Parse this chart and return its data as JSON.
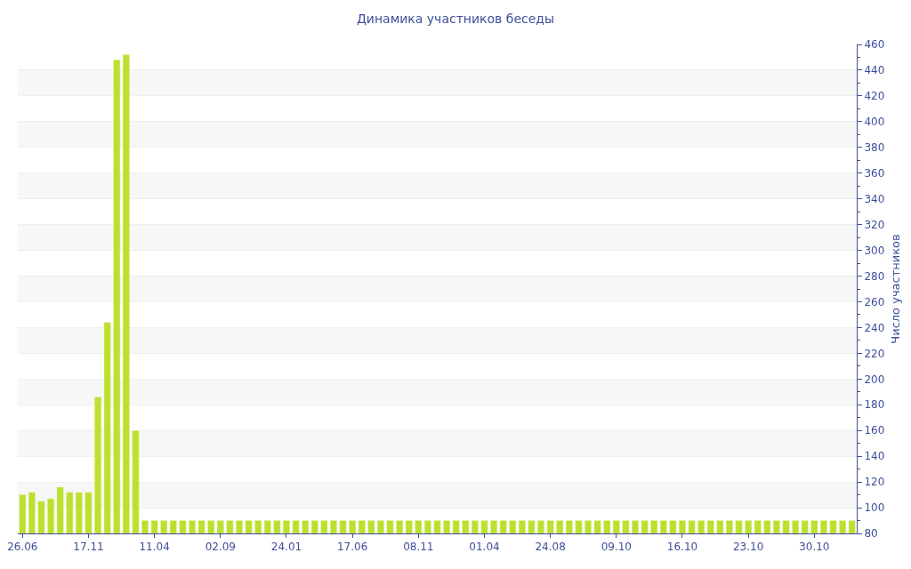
{
  "chart_data": {
    "type": "bar",
    "title": "Динамика участников беседы",
    "ylabel": "Число участников",
    "categories": [
      "26.06",
      null,
      null,
      null,
      null,
      null,
      null,
      "17.11",
      null,
      null,
      null,
      null,
      null,
      null,
      "11.04",
      null,
      null,
      null,
      null,
      null,
      null,
      "02.09",
      null,
      null,
      null,
      null,
      null,
      null,
      "24.01",
      null,
      null,
      null,
      null,
      null,
      null,
      "17.06",
      null,
      null,
      null,
      null,
      null,
      null,
      "08.11",
      null,
      null,
      null,
      null,
      null,
      null,
      "01.04",
      null,
      null,
      null,
      null,
      null,
      null,
      "24.08",
      null,
      null,
      null,
      null,
      null,
      null,
      "09.10",
      null,
      null,
      null,
      null,
      null,
      null,
      "16.10",
      null,
      null,
      null,
      null,
      null,
      null,
      "23.10",
      null,
      null,
      null,
      null,
      null,
      null,
      "30.10",
      null,
      null,
      null,
      null
    ],
    "values": [
      110,
      112,
      105,
      107,
      116,
      112,
      112,
      112,
      186,
      244,
      448,
      452,
      160,
      90,
      90,
      90,
      90,
      90,
      90,
      90,
      90,
      90,
      90,
      90,
      90,
      90,
      90,
      90,
      90,
      90,
      90,
      90,
      90,
      90,
      90,
      90,
      90,
      90,
      90,
      90,
      90,
      90,
      90,
      90,
      90,
      90,
      90,
      90,
      90,
      90,
      90,
      90,
      90,
      90,
      90,
      90,
      90,
      90,
      90,
      90,
      90,
      90,
      90,
      90,
      90,
      90,
      90,
      90,
      90,
      90,
      90,
      90,
      90,
      90,
      90,
      90,
      90,
      90,
      90,
      90,
      90,
      90,
      90,
      90,
      90,
      90,
      90,
      90,
      90
    ],
    "color": "#bbe02f",
    "ylim": [
      80,
      460
    ],
    "yticks": [
      80,
      100,
      120,
      140,
      160,
      180,
      200,
      220,
      240,
      260,
      280,
      300,
      320,
      340,
      360,
      380,
      400,
      420,
      440,
      460
    ],
    "grid": "y"
  }
}
